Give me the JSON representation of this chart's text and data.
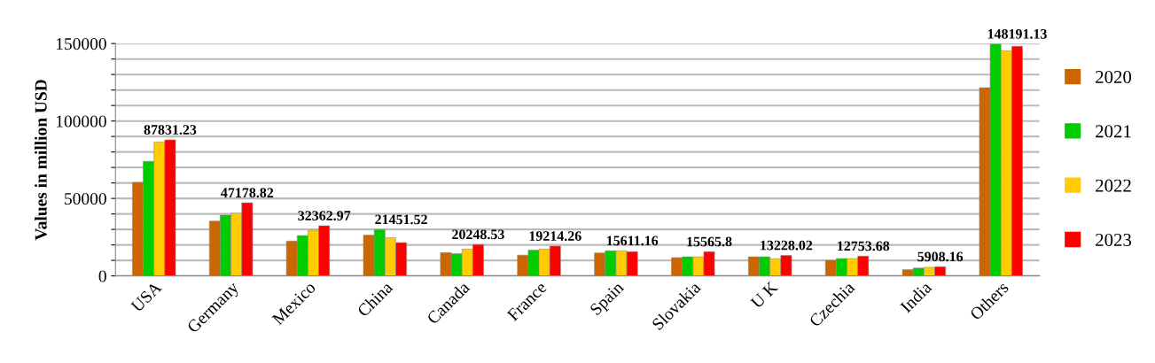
{
  "chart_data": {
    "type": "bar",
    "ylabel": "Values in million USD",
    "categories": [
      "USA",
      "Germany",
      "Mexico",
      "China",
      "Canada",
      "France",
      "Spain",
      "Slovakia",
      "U K",
      "Czechia",
      "India",
      "Others"
    ],
    "series": [
      {
        "name": "2020",
        "color": "#cc6600",
        "values": [
          60400,
          35400,
          22500,
          26300,
          15000,
          13400,
          14800,
          11800,
          12300,
          10000,
          4000,
          121500
        ]
      },
      {
        "name": "2021",
        "color": "#00cc00",
        "values": [
          74000,
          39200,
          26000,
          29900,
          14400,
          16700,
          16200,
          12300,
          12300,
          11200,
          5100,
          149700
        ]
      },
      {
        "name": "2022",
        "color": "#ffcc00",
        "values": [
          86500,
          40500,
          29500,
          24700,
          17300,
          17300,
          16200,
          12300,
          11100,
          11200,
          5500,
          145400
        ]
      },
      {
        "name": "2023",
        "color": "#ff0000",
        "values": [
          87831.23,
          47178.82,
          32362.97,
          21451.52,
          20248.53,
          19214.26,
          15611.16,
          15565.8,
          13228.02,
          12753.68,
          5908.16,
          148191.13
        ],
        "value_labels": [
          "87831.23",
          "47178.82",
          "32362.97",
          "21451.52",
          "20248.53",
          "19214.26",
          "15611.16",
          "15565.8",
          "13228.02",
          "12753.68",
          "5908.16",
          "148191.13"
        ]
      }
    ],
    "ylim": [
      0,
      150000
    ],
    "yticks": [
      0,
      {
        "value": 10000,
        "label": null
      },
      {
        "value": 20000,
        "label": null
      },
      {
        "value": 30000,
        "label": null
      },
      {
        "value": 40000,
        "label": null
      },
      50000,
      {
        "value": 60000,
        "label": null
      },
      {
        "value": 70000,
        "label": null
      },
      {
        "value": 80000,
        "label": null
      },
      {
        "value": 90000,
        "label": null
      },
      100000,
      {
        "value": 110000,
        "label": null
      },
      {
        "value": 120000,
        "label": null
      },
      {
        "value": 130000,
        "label": null
      },
      {
        "value": 140000,
        "label": null
      },
      150000
    ],
    "grid": "y",
    "legend": "right"
  }
}
